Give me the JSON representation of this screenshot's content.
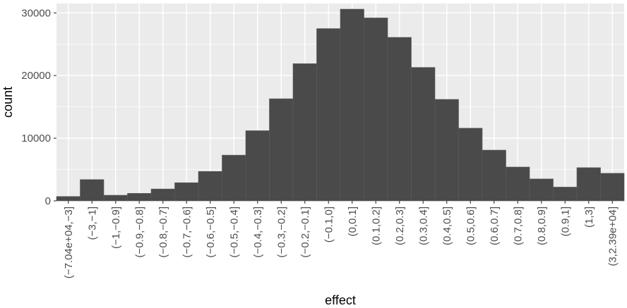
{
  "chart_data": {
    "type": "bar",
    "xlabel": "effect",
    "ylabel": "count",
    "ylim": [
      0,
      31500
    ],
    "yticks": [
      0,
      10000,
      20000,
      30000
    ],
    "ytick_labels": [
      "0",
      "10000",
      "20000",
      "30000"
    ],
    "grid": true,
    "categories": [
      "(−7.04e+04,−3]",
      "(−3,−1]",
      "(−1,−0.9]",
      "(−0.9,−0.8]",
      "(−0.8,−0.7]",
      "(−0.7,−0.6]",
      "(−0.6,−0.5]",
      "(−0.5,−0.4]",
      "(−0.4,−0.3]",
      "(−0.3,−0.2]",
      "(−0.2,−0.1]",
      "(−0.1,0]",
      "(0,0.1]",
      "(0.1,0.2]",
      "(0.2,0.3]",
      "(0.3,0.4]",
      "(0.4,0.5]",
      "(0.5,0.6]",
      "(0.6,0.7]",
      "(0.7,0.8]",
      "(0.8,0.9]",
      "(0.9,1]",
      "(1,3]",
      "(3,2.39e+04]"
    ],
    "values": [
      700,
      3400,
      900,
      1200,
      1900,
      2900,
      4700,
      7300,
      11200,
      16300,
      21900,
      27500,
      30600,
      29200,
      26100,
      21300,
      16200,
      11600,
      8100,
      5400,
      3500,
      2200,
      5300,
      4400
    ]
  },
  "colors": {
    "panel_background": "#ebebeb",
    "gridline": "#ffffff",
    "bar_fill": "#4a4a4a"
  }
}
